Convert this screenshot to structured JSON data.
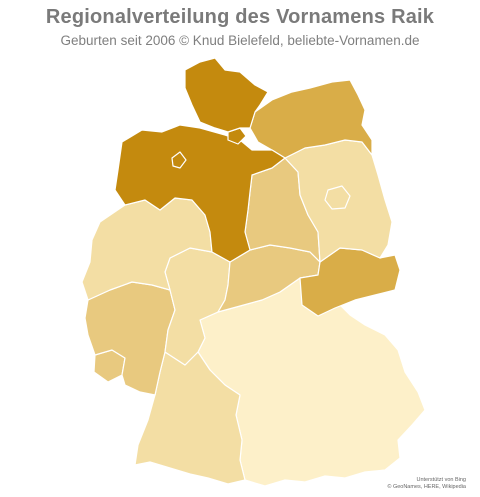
{
  "header": {
    "title": "Regionalverteilung des Vornamens Raik",
    "subtitle": "Geburten seit 2006  © Knud Bielefeld, beliebte-Vornamen.de"
  },
  "map": {
    "country": "Deutschland",
    "name": "Raik",
    "colors": {
      "level_1": "#fdf0c9",
      "level_2": "#f3dea4",
      "level_3": "#e8c97f",
      "level_4": "#d9ad48",
      "level_5": "#c48a0e"
    },
    "regions": [
      {
        "id": "SH",
        "level": 5
      },
      {
        "id": "HH",
        "level": 5
      },
      {
        "id": "NI",
        "level": 5
      },
      {
        "id": "HB",
        "level": 5
      },
      {
        "id": "MV",
        "level": 4
      },
      {
        "id": "SN",
        "level": 4
      },
      {
        "id": "ST",
        "level": 3
      },
      {
        "id": "TH",
        "level": 3
      },
      {
        "id": "BB",
        "level": 2
      },
      {
        "id": "BE",
        "level": 2
      },
      {
        "id": "NW",
        "level": 2
      },
      {
        "id": "HE",
        "level": 2
      },
      {
        "id": "RP",
        "level": 3
      },
      {
        "id": "SL",
        "level": 3
      },
      {
        "id": "BW",
        "level": 2
      },
      {
        "id": "BY",
        "level": 1
      }
    ]
  },
  "attribution": {
    "line1": "Unterstützt von Bing",
    "line2": "© GeoNames, HERE, Wikipedia"
  }
}
